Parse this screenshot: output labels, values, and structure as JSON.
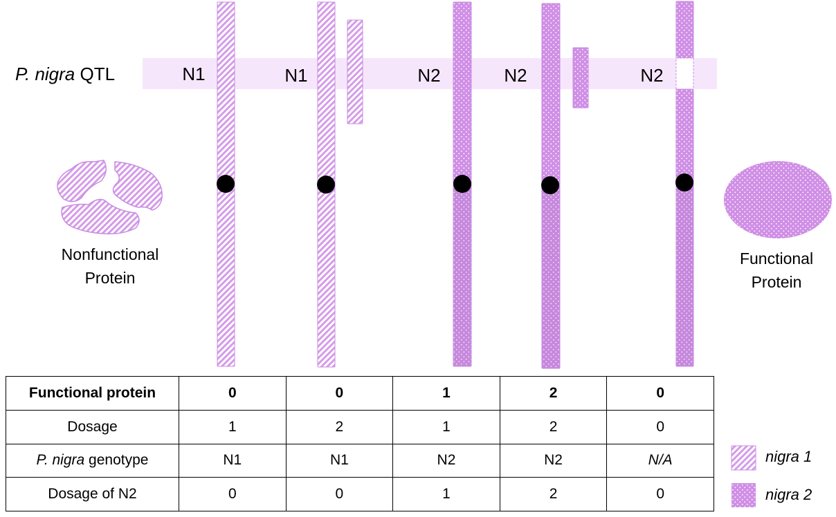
{
  "qtl_label": {
    "italic": "P. nigra",
    "rest": " QTL"
  },
  "chromosome_labels": [
    "N1",
    "N1",
    "N2",
    "N2",
    "N2"
  ],
  "proteins": {
    "left_line1": "Nonfunctional",
    "left_line2": "Protein",
    "right_line1": "Functional",
    "right_line2": "Protein"
  },
  "colors": {
    "nigra1": "#d9a3ec",
    "nigra2": "#cf8fe6",
    "qtl_band": "#f6e6fb",
    "outline": "#c98be3",
    "centromere": "#000000"
  },
  "table": {
    "rows": [
      {
        "label": "Functional protein",
        "values": [
          "0",
          "0",
          "1",
          "2",
          "0"
        ]
      },
      {
        "label": "Dosage",
        "values": [
          "1",
          "2",
          "1",
          "2",
          "0"
        ]
      },
      {
        "label_italic": "P. nigra",
        "label_rest": " genotype",
        "values": [
          "N1",
          "N1",
          "N2",
          "N2",
          "N/A"
        ]
      },
      {
        "label": "Dosage of N2",
        "values": [
          "0",
          "0",
          "1",
          "2",
          "0"
        ]
      }
    ]
  },
  "legend": [
    {
      "label": "nigra 1",
      "icon": "hatched-swatch-icon"
    },
    {
      "label": "nigra 2",
      "icon": "dotted-swatch-icon"
    }
  ]
}
